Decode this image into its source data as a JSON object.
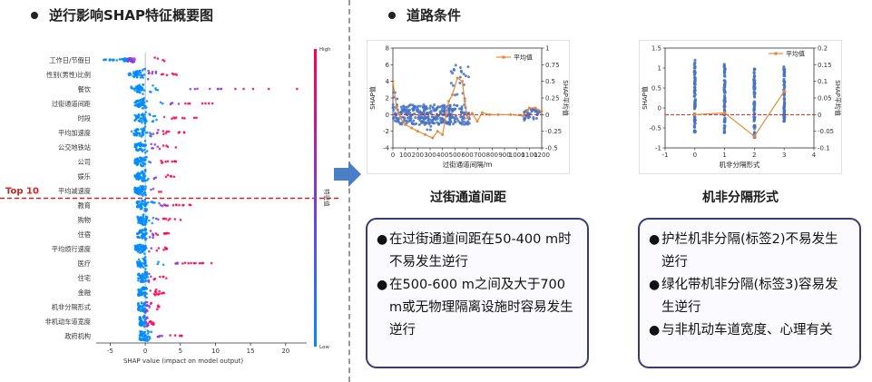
{
  "left": {
    "section_title": "逆行影响SHAP特征概要图",
    "top10_label": "Top 10"
  },
  "middle": {
    "section_title": "道路条件",
    "sub_title": "过街通道间距",
    "box_items": [
      "在过街通道间距在50-400 m时不易发生逆行",
      "在500-600 m之间及大于700 m或无物理隔离设施时容易发生逆行"
    ]
  },
  "right": {
    "sub_title": "机非分隔形式",
    "box_items": [
      "护栏机非分隔(标签2)不易发生逆行",
      "绿化带机非分隔(标签3)容易发生逆行",
      "与非机动车道宽度、心理有关"
    ]
  },
  "colors": {
    "high": "#ff0052",
    "low": "#008bfb",
    "mean_line": "#e8893a",
    "scatter": "#4472c4",
    "dashed_ref": "#cc2222",
    "box_border": "#3a3a7a",
    "arrow": "#4a7fc8"
  },
  "chart_data": [
    {
      "type": "scatter",
      "subtype": "shap-beeswarm",
      "features": [
        "工作日/节假日",
        "性别(男性)比例",
        "餐饮",
        "过街通道间距",
        "时段",
        "平均加速度",
        "公交地铁站",
        "公司",
        "娱乐",
        "平均减速度",
        "教育",
        "购物",
        "住宿",
        "平均烦行速度",
        "医疗",
        "住宅",
        "金融",
        "机非分隔形式",
        "非机动车道宽度",
        "政府机构"
      ],
      "xlabel": "SHAP value (impact on model output)",
      "xticks": [
        -5,
        0,
        5,
        10,
        15,
        20
      ],
      "xlim": [
        -7,
        23
      ],
      "colorbar": {
        "high": "High",
        "low": "Low",
        "label": "特征值"
      }
    },
    {
      "type": "scatter",
      "subtype": "scatter-with-mean-line",
      "xlabel": "过街通道间隔/m",
      "ylabel": "SHAP值",
      "y2label": "SHAP平均值",
      "legend": "平均值",
      "legend_position": "top-right",
      "xticks": [
        0,
        100,
        200,
        300,
        400,
        500,
        600,
        700,
        800,
        900,
        1000,
        1100,
        1200
      ],
      "yticks": [
        -4,
        -2,
        0,
        2,
        4,
        6,
        8
      ],
      "y2ticks": [
        -0.5,
        -0.25,
        0,
        0.25,
        0.5,
        0.75,
        1
      ],
      "xlim": [
        0,
        1200
      ],
      "ylim": [
        -4,
        8
      ],
      "y2lim": [
        -0.5,
        1
      ],
      "mean_x": [
        0,
        30,
        60,
        100,
        150,
        200,
        260,
        320,
        360,
        400,
        450,
        480,
        520,
        560,
        580,
        600,
        640,
        680,
        720,
        780,
        850,
        950,
        1050,
        1100,
        1150,
        1200
      ],
      "mean_y": [
        0.5,
        0.1,
        -0.05,
        -0.15,
        -0.2,
        -0.25,
        -0.3,
        -0.35,
        -0.25,
        -0.3,
        0.2,
        0.3,
        0.55,
        0.5,
        0.2,
        -0.05,
        0.02,
        -0.1,
        0.03,
        0.0,
        0.0,
        0.0,
        -0.02,
        0.1,
        0.1,
        0.05
      ]
    },
    {
      "type": "scatter",
      "subtype": "scatter-with-mean-line",
      "xlabel": "机非分隔形式",
      "ylabel": "SHAP值",
      "y2label": "SHAP平均值",
      "legend": "平均值",
      "legend_position": "top-right",
      "xticks": [
        -1,
        0,
        1,
        2,
        3,
        4
      ],
      "yticks": [
        -1,
        -0.5,
        0,
        0.5,
        1,
        1.5
      ],
      "y2ticks": [
        -0.1,
        -0.05,
        0,
        0.05,
        0.1,
        0.15,
        0.2
      ],
      "xlim": [
        -1,
        4
      ],
      "ylim": [
        -1,
        1.5
      ],
      "y2lim": [
        -0.1,
        0.2
      ],
      "mean_x": [
        0,
        1,
        2,
        3
      ],
      "mean_y": [
        0.0,
        0.005,
        -0.065,
        0.07
      ],
      "strips": [
        {
          "x": 0,
          "min": -0.6,
          "max": 1.2
        },
        {
          "x": 1,
          "min": -0.65,
          "max": 1.15
        },
        {
          "x": 2,
          "min": -0.75,
          "max": 1.05
        },
        {
          "x": 3,
          "min": -0.35,
          "max": 1.1
        }
      ]
    }
  ]
}
